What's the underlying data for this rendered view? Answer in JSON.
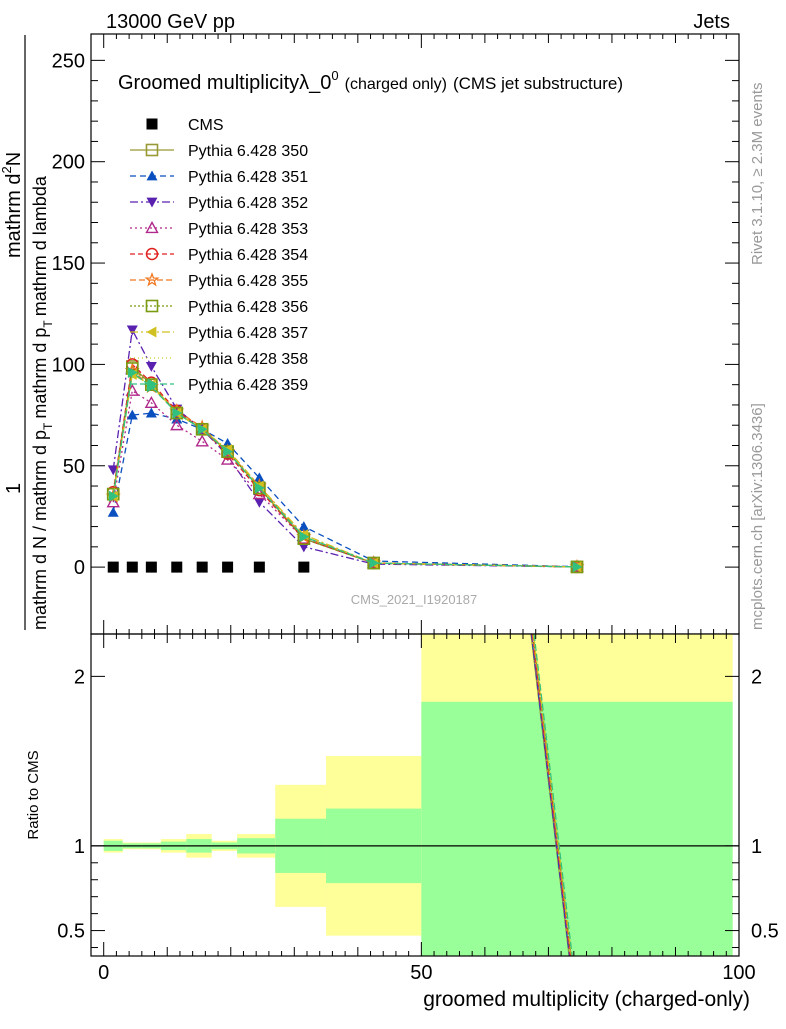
{
  "header": {
    "left": "13000 GeV pp",
    "right": "Jets"
  },
  "side_labels": {
    "rivet": "Rivet 3.1.10, ≥ 2.3M events",
    "mcplots": "mcplots.cern.ch [arXiv:1306.3436]"
  },
  "watermark": "CMS_2021_I1920187",
  "colors": {
    "band_yellow": "#ffff99",
    "band_green": "#99ff99",
    "cms": "#000000"
  },
  "chart_data": [
    {
      "type": "line",
      "title": "Groomed multiplicity",
      "title_symbol": "λ_0",
      "title_sup": "0",
      "title_suffix_small": "(charged only)",
      "title_suffix": "(CMS jet substructure)",
      "ylabel": "1 / mathrm d N / mathrm d p_T mathrm d p_T mathrm d lambda mathrm d^2N",
      "ylabel_parts": {
        "numerator_top": "mathrm d",
        "numerator_sup": "2",
        "numerator_end": "N",
        "denominator_top": "mathrm d p",
        "denominator_sub": "T",
        "denominator_end": "mathrm d lambda",
        "one": "1",
        "bottom": "mathrm d N / mathrm d p",
        "bottom_sub": "T"
      },
      "xlim": [
        -2,
        100
      ],
      "ylim": [
        -33,
        263
      ],
      "yticks": [
        "0",
        "50",
        "100",
        "150",
        "200",
        "250"
      ],
      "legend_position": "top-left",
      "cms": {
        "name": "CMS",
        "x": [
          1.5,
          4.5,
          7.5,
          11.5,
          15.5,
          19.5,
          24.5,
          31.5
        ],
        "y": [
          0,
          0,
          0,
          0,
          0,
          0,
          0,
          0
        ]
      },
      "x": [
        1.5,
        4.5,
        7.5,
        11.5,
        15.5,
        19.5,
        24.5,
        31.5,
        42.5,
        74.5
      ],
      "series": [
        {
          "name": "Pythia 6.428 350",
          "color": "#999933",
          "marker": "open-square",
          "dash": "",
          "values": [
            36,
            99,
            90,
            76,
            68,
            57,
            39,
            14,
            2,
            0.1
          ]
        },
        {
          "name": "Pythia 6.428 351",
          "color": "#0a4fbf",
          "marker": "filled-triangle-up",
          "dash": "6,4",
          "values": [
            27,
            75,
            76,
            73,
            68,
            61,
            44,
            20,
            3,
            0.2
          ]
        },
        {
          "name": "Pythia 6.428 352",
          "color": "#5a20b0",
          "marker": "filled-triangle-down",
          "dash": "8,3,2,3",
          "values": [
            48,
            117,
            99,
            78,
            68,
            55,
            32,
            10,
            1.5,
            0.1
          ]
        },
        {
          "name": "Pythia 6.428 353",
          "color": "#b0288a",
          "marker": "open-triangle-up",
          "dash": "2,3",
          "values": [
            32,
            87,
            81,
            70,
            62,
            53,
            36,
            14,
            2,
            0.1
          ]
        },
        {
          "name": "Pythia 6.428 354",
          "color": "#e02020",
          "marker": "open-circle",
          "dash": "5,3",
          "values": [
            37,
            100,
            91,
            77,
            68,
            56,
            38,
            14,
            2,
            0.1
          ]
        },
        {
          "name": "Pythia 6.428 355",
          "color": "#f07820",
          "marker": "open-star",
          "dash": "6,3",
          "values": [
            35,
            97,
            89,
            77,
            69,
            57,
            40,
            15,
            2,
            0.1
          ]
        },
        {
          "name": "Pythia 6.428 356",
          "color": "#7a9a10",
          "marker": "open-square",
          "dash": "2,2",
          "values": [
            36,
            98,
            90,
            76,
            68,
            57,
            39,
            14,
            2,
            0.1
          ]
        },
        {
          "name": "Pythia 6.428 357",
          "color": "#d0c020",
          "marker": "filled-triangle-left",
          "dash": "8,3,2,3",
          "values": [
            35,
            95,
            90,
            76,
            68,
            58,
            40,
            16,
            2,
            0.1
          ]
        },
        {
          "name": "Pythia 6.428 358",
          "color": "#cccc22",
          "marker": "none",
          "dash": "1,3",
          "values": [
            36,
            96,
            89,
            76,
            68,
            57,
            39,
            15,
            2,
            0.1
          ]
        },
        {
          "name": "Pythia 6.428 359",
          "color": "#30c080",
          "marker": "filled-triangle-right",
          "dash": "7,3",
          "values": [
            35,
            96,
            89,
            76,
            68,
            57,
            39,
            15,
            2,
            0.1
          ]
        }
      ]
    },
    {
      "type": "area",
      "ylabel": "Ratio to CMS",
      "xlabel": "groomed multiplicity (charged-only)",
      "xlim": [
        -2,
        100
      ],
      "ylim": [
        0.35,
        2.25
      ],
      "xticks": [
        "0",
        "50",
        "100"
      ],
      "yticks": [
        "0.5",
        "1",
        "2"
      ],
      "reference": 1,
      "bands": [
        {
          "x": [
            0,
            3
          ],
          "yellow": [
            0.96,
            1.04
          ],
          "green": [
            0.97,
            1.03
          ]
        },
        {
          "x": [
            3,
            6
          ],
          "yellow": [
            0.98,
            1.02
          ],
          "green": [
            0.985,
            1.015
          ]
        },
        {
          "x": [
            6,
            9
          ],
          "yellow": [
            0.98,
            1.02
          ],
          "green": [
            0.985,
            1.015
          ]
        },
        {
          "x": [
            9,
            13
          ],
          "yellow": [
            0.96,
            1.04
          ],
          "green": [
            0.975,
            1.025
          ]
        },
        {
          "x": [
            13,
            17
          ],
          "yellow": [
            0.93,
            1.07
          ],
          "green": [
            0.96,
            1.04
          ]
        },
        {
          "x": [
            17,
            21
          ],
          "yellow": [
            0.97,
            1.03
          ],
          "green": [
            0.98,
            1.02
          ]
        },
        {
          "x": [
            21,
            27
          ],
          "yellow": [
            0.93,
            1.07
          ],
          "green": [
            0.955,
            1.045
          ]
        },
        {
          "x": [
            27,
            35
          ],
          "yellow": [
            0.64,
            1.36
          ],
          "green": [
            0.84,
            1.16
          ]
        },
        {
          "x": [
            35,
            50
          ],
          "yellow": [
            0.47,
            1.53
          ],
          "green": [
            0.78,
            1.22
          ]
        },
        {
          "x": [
            50,
            99
          ],
          "yellow": [
            0.35,
            2.25
          ],
          "green": [
            0.35,
            1.85
          ]
        }
      ],
      "mc_line": {
        "x": [
          67.5,
          73.5
        ],
        "y": [
          2.25,
          0.35
        ]
      }
    }
  ]
}
